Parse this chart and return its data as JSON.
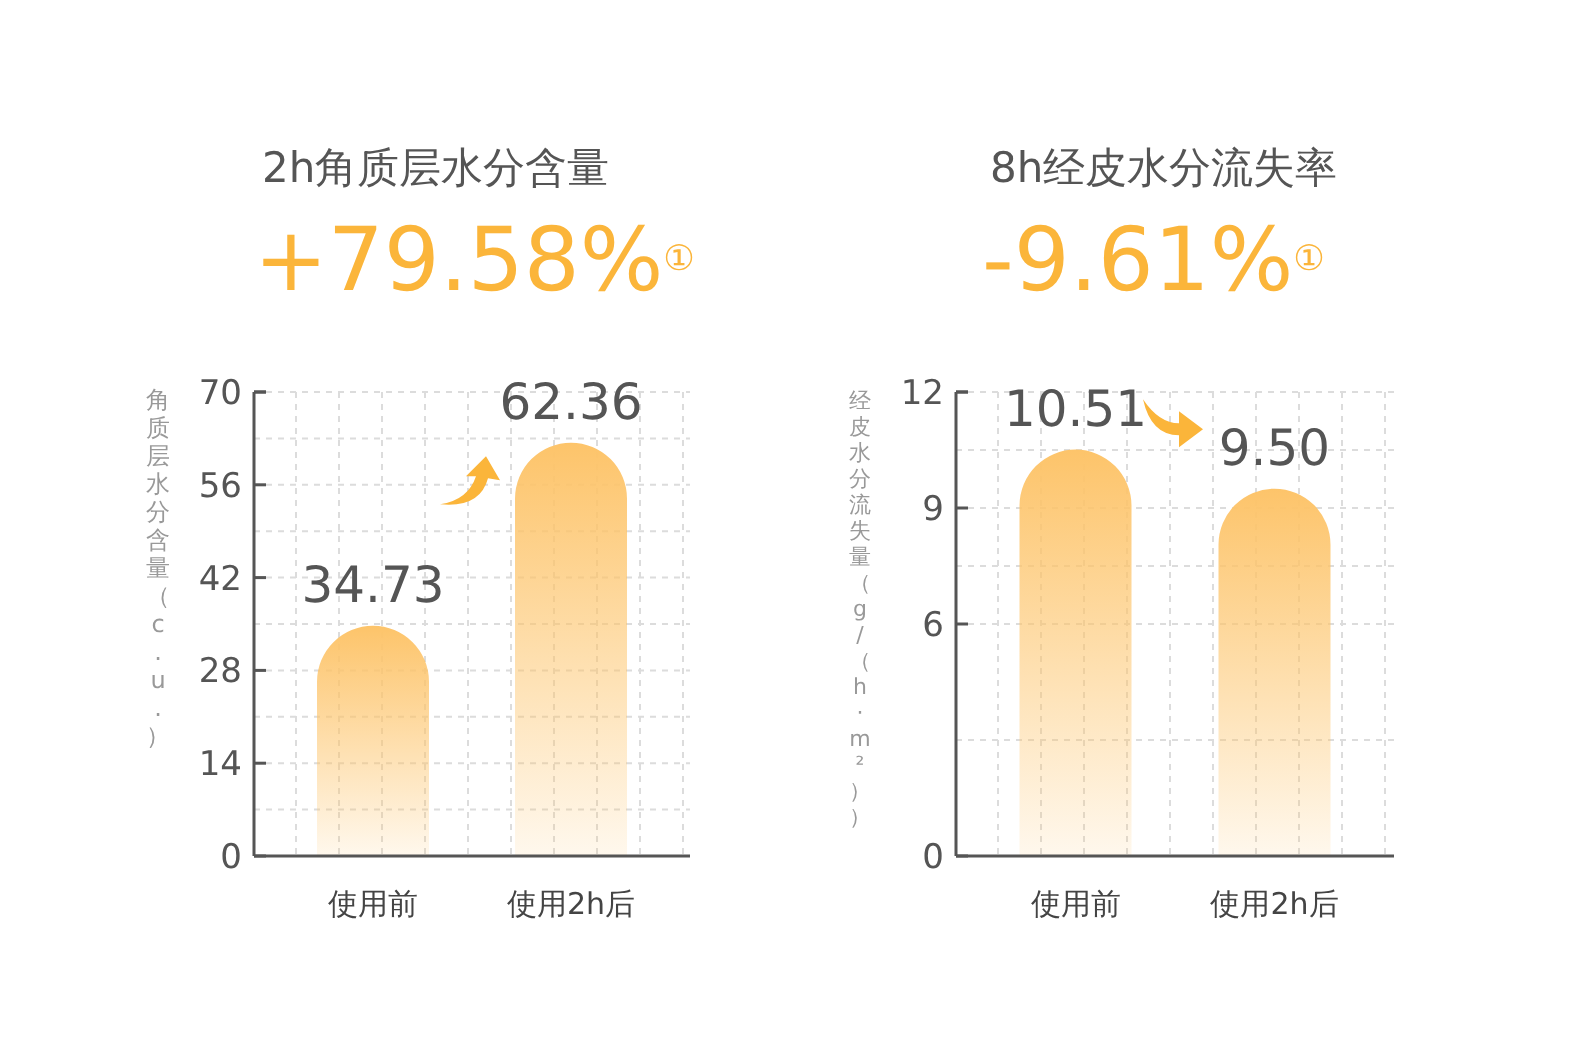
{
  "chart_data": [
    {
      "type": "bar",
      "title": "2h角质层水分含量",
      "subtitle": "+79.58%$^{①}$",
      "ylabel": "角质层水分含量（c.u.）",
      "categories": [
        "使用前",
        "使用2h后"
      ],
      "values": [
        34.73,
        62.36
      ],
      "value_labels": [
        "34.73",
        "62.36"
      ],
      "color": "#fdc46a",
      "ylim": [
        0,
        70
      ],
      "yticks": [
        0,
        14,
        28,
        42,
        56,
        70
      ],
      "grid": true
    },
    {
      "type": "bar",
      "title": "8h经皮水分流失率",
      "subtitle": "-9.61%$^{①}$",
      "ylabel": "经皮水分流失量（g/（h·m²））",
      "categories": [
        "使用前",
        "使用2h后"
      ],
      "values": [
        10.51,
        9.5
      ],
      "value_labels": [
        "10.51",
        "9.50"
      ],
      "color": "#fdc46a",
      "ylim": [
        0,
        12
      ],
      "yticks": [
        0,
        6,
        9,
        12
      ],
      "grid": true
    }
  ]
}
